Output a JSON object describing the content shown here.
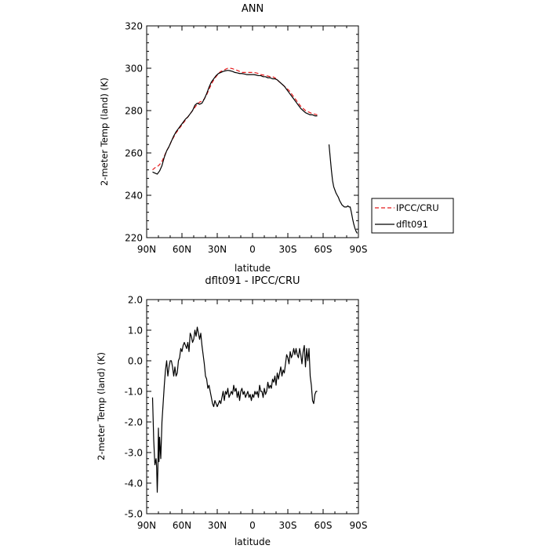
{
  "chart_data": [
    {
      "type": "line",
      "title": "ANN",
      "xlabel": "latitude",
      "ylabel": "2-meter Temp (land) (K)",
      "x_ticks": [
        90,
        60,
        30,
        0,
        -30,
        -60,
        -90
      ],
      "x_tick_labels": [
        "90N",
        "60N",
        "30N",
        "0",
        "30S",
        "60S",
        "90S"
      ],
      "xlim": [
        90,
        -90
      ],
      "ylim": [
        220,
        320
      ],
      "y_ticks": [
        220,
        240,
        260,
        280,
        300,
        320
      ],
      "y_tick_labels": [
        "220",
        "240",
        "260",
        "280",
        "300",
        "320"
      ],
      "legend": {
        "position": "right",
        "entries": [
          "IPCC/CRU",
          "dflt091"
        ]
      },
      "series": [
        {
          "name": "IPCC/CRU",
          "color": "#e41a1c",
          "dash": true,
          "x": [
            85,
            83,
            81,
            79,
            77,
            75,
            73,
            71,
            69,
            67,
            65,
            63,
            61,
            59,
            57,
            55,
            53,
            51,
            49,
            47,
            45,
            43,
            41,
            39,
            37,
            35,
            33,
            31,
            29,
            27,
            25,
            23,
            21,
            19,
            17,
            15,
            13,
            11,
            9,
            7,
            5,
            3,
            1,
            -1,
            -3,
            -5,
            -7,
            -9,
            -11,
            -13,
            -15,
            -17,
            -19,
            -21,
            -23,
            -25,
            -27,
            -29,
            -31,
            -33,
            -35,
            -37,
            -39,
            -41,
            -43,
            -45,
            -47,
            -49,
            -51,
            -53,
            -55
          ],
          "y": [
            252.0,
            253.0,
            253.5,
            254.5,
            256.0,
            258.5,
            261.0,
            263.0,
            265.5,
            267.5,
            269.5,
            271.0,
            272.5,
            274.0,
            275.5,
            277.0,
            278.5,
            280.0,
            281.5,
            283.0,
            284.0,
            284.5,
            285.5,
            287.5,
            290.0,
            292.5,
            294.5,
            296.0,
            297.5,
            298.5,
            299.0,
            299.5,
            300.0,
            300.0,
            299.8,
            299.3,
            299.0,
            298.5,
            298.0,
            298.0,
            298.0,
            298.0,
            298.0,
            298.0,
            297.8,
            297.5,
            297.0,
            296.8,
            296.5,
            296.3,
            296.0,
            296.0,
            295.5,
            294.5,
            293.5,
            292.5,
            291.5,
            290.5,
            289.5,
            288.0,
            286.5,
            285.0,
            283.5,
            282.0,
            281.0,
            280.0,
            279.5,
            279.0,
            278.5,
            278.3,
            278.0
          ]
        },
        {
          "name": "dflt091",
          "color": "#000000",
          "dash": false,
          "x": [
            85,
            83,
            81,
            79,
            77,
            75,
            73,
            71,
            69,
            67,
            65,
            63,
            61,
            59,
            57,
            55,
            53,
            51,
            49,
            47,
            45,
            43,
            41,
            39,
            37,
            35,
            33,
            31,
            29,
            27,
            25,
            23,
            21,
            19,
            17,
            15,
            13,
            11,
            9,
            7,
            5,
            3,
            1,
            -1,
            -3,
            -5,
            -7,
            -9,
            -11,
            -13,
            -15,
            -17,
            -19,
            -21,
            -23,
            -25,
            -27,
            -29,
            -31,
            -33,
            -35,
            -37,
            -39,
            -41,
            -43,
            -45,
            -47,
            -49,
            -51,
            -53,
            -55,
            null,
            -65,
            -66,
            -67,
            -68,
            -69,
            -70,
            -71,
            -72,
            -73,
            -74,
            -75,
            -76,
            -77,
            -78,
            -79,
            -80,
            -81,
            -82,
            -83,
            -84,
            -85,
            -86,
            -87,
            -88,
            -89
          ],
          "y": [
            251.0,
            250.5,
            250.0,
            251.5,
            254.0,
            258.0,
            261.0,
            263.0,
            265.5,
            268.0,
            270.0,
            271.5,
            273.0,
            274.5,
            276.0,
            277.0,
            278.5,
            280.0,
            282.5,
            283.5,
            283.0,
            283.5,
            285.5,
            288.0,
            291.0,
            293.5,
            295.0,
            296.5,
            297.5,
            298.0,
            298.5,
            298.8,
            299.0,
            298.8,
            298.5,
            298.0,
            297.8,
            297.5,
            297.5,
            297.3,
            297.0,
            297.0,
            297.0,
            297.0,
            296.8,
            296.5,
            296.5,
            296.0,
            296.0,
            295.5,
            295.5,
            295.0,
            295.0,
            294.5,
            293.5,
            292.5,
            291.5,
            290.0,
            288.5,
            287.0,
            285.5,
            284.0,
            282.5,
            281.0,
            280.0,
            279.0,
            278.5,
            278.0,
            278.0,
            277.5,
            277.5,
            null,
            264.0,
            258.0,
            252.0,
            247.0,
            244.0,
            242.5,
            241.0,
            240.0,
            239.0,
            237.5,
            236.5,
            235.5,
            235.0,
            234.5,
            234.5,
            234.5,
            235.0,
            234.5,
            234.5,
            232.0,
            229.0,
            226.5,
            224.5,
            223.0,
            222.0
          ]
        }
      ]
    },
    {
      "type": "line",
      "title": "dflt091 - IPCC/CRU",
      "xlabel": "latitude",
      "ylabel": "2-meter Temp (land) (K)",
      "x_ticks": [
        90,
        60,
        30,
        0,
        -30,
        -60,
        -90
      ],
      "x_tick_labels": [
        "90N",
        "60N",
        "30N",
        "0",
        "30S",
        "60S",
        "90S"
      ],
      "xlim": [
        90,
        -90
      ],
      "ylim": [
        -5.0,
        2.0
      ],
      "y_ticks": [
        -5.0,
        -4.0,
        -3.0,
        -2.0,
        -1.0,
        0.0,
        1.0,
        2.0
      ],
      "y_tick_labels": [
        "-5.0",
        "-4.0",
        "-3.0",
        "-2.0",
        "-1.0",
        "0.0",
        "1.0",
        "2.0"
      ],
      "series": [
        {
          "color": "#000000",
          "dash": false,
          "x": [
            85,
            84,
            83,
            82,
            81.5,
            81,
            80.5,
            80,
            79.5,
            79,
            78,
            77,
            76,
            75,
            74,
            73,
            72,
            71,
            70,
            69,
            68,
            67,
            66,
            65,
            64,
            63,
            62,
            61,
            60,
            59,
            58,
            57,
            56,
            55,
            54,
            53,
            52,
            51,
            50,
            49,
            48,
            47,
            46,
            45,
            44,
            43,
            42,
            41,
            40,
            39,
            38,
            37,
            36,
            35,
            34,
            33,
            32,
            31,
            30,
            29,
            28,
            27,
            26,
            25,
            24,
            23,
            22,
            21,
            20,
            19,
            18,
            17,
            16,
            15,
            14,
            13,
            12,
            11,
            10,
            9,
            8,
            7,
            6,
            5,
            4,
            3,
            2,
            1,
            0,
            -1,
            -2,
            -3,
            -4,
            -5,
            -6,
            -7,
            -8,
            -9,
            -10,
            -11,
            -12,
            -13,
            -14,
            -15,
            -16,
            -17,
            -18,
            -19,
            -20,
            -21,
            -22,
            -23,
            -24,
            -25,
            -26,
            -27,
            -28,
            -29,
            -30,
            -31,
            -32,
            -33,
            -34,
            -35,
            -36,
            -37,
            -38,
            -39,
            -40,
            -41,
            -42,
            -43,
            -44,
            -45,
            -46,
            -47,
            -48,
            -49,
            -50,
            -51,
            -52,
            -53,
            -54,
            -55
          ],
          "y": [
            -1.2,
            -2.6,
            -3.4,
            -3.2,
            -3.5,
            -4.3,
            -3.6,
            -2.2,
            -3.3,
            -2.5,
            -3.2,
            -2.0,
            -1.4,
            -0.8,
            -0.3,
            0.0,
            -0.5,
            -0.2,
            0.0,
            0.0,
            -0.2,
            -0.5,
            -0.2,
            -0.5,
            -0.4,
            0.0,
            0.1,
            0.4,
            0.3,
            0.5,
            0.6,
            0.5,
            0.4,
            0.6,
            0.3,
            0.9,
            0.8,
            0.6,
            0.7,
            1.0,
            0.8,
            1.1,
            0.9,
            0.7,
            0.9,
            0.5,
            0.2,
            -0.1,
            -0.5,
            -0.6,
            -0.9,
            -0.8,
            -1.0,
            -1.2,
            -1.4,
            -1.5,
            -1.3,
            -1.4,
            -1.5,
            -1.4,
            -1.3,
            -1.4,
            -1.2,
            -1.0,
            -1.3,
            -1.0,
            -1.1,
            -0.9,
            -1.2,
            -1.1,
            -1.0,
            -1.1,
            -0.8,
            -1.0,
            -0.9,
            -1.2,
            -1.0,
            -1.3,
            -1.0,
            -0.9,
            -1.1,
            -1.0,
            -1.2,
            -1.1,
            -1.0,
            -1.2,
            -1.1,
            -1.3,
            -1.1,
            -1.2,
            -1.0,
            -1.1,
            -1.0,
            -1.2,
            -0.8,
            -1.0,
            -1.0,
            -1.2,
            -0.9,
            -1.1,
            -1.0,
            -0.7,
            -0.9,
            -0.8,
            -0.9,
            -0.6,
            -0.7,
            -0.5,
            -0.8,
            -0.4,
            -0.6,
            -0.4,
            -0.2,
            -0.5,
            -0.3,
            -0.4,
            -0.1,
            0.2,
            0.1,
            -0.1,
            0.3,
            0.1,
            0.2,
            0.4,
            0.2,
            0.4,
            0.2,
            0.1,
            0.4,
            0.2,
            -0.1,
            0.3,
            0.5,
            -0.2,
            0.4,
            0.0,
            0.4,
            -0.5,
            -0.8,
            -1.3,
            -1.4,
            -1.1,
            -1.0,
            -1.0
          ]
        }
      ]
    }
  ]
}
